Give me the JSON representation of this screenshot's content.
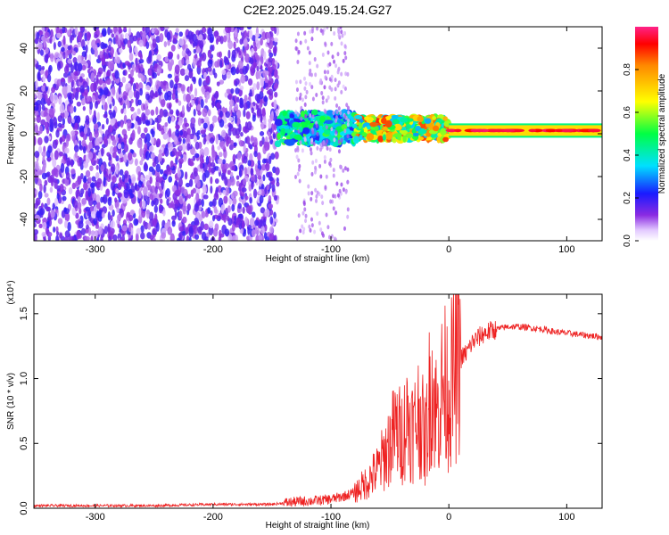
{
  "title": "C2E2.2025.049.15.24.G27",
  "colors": {
    "snr_line": "#ee2222",
    "frame": "#000000"
  },
  "chart_data": [
    {
      "type": "heatmap",
      "title": "",
      "xlabel": "Height of straight line (km)",
      "ylabel": "Frequency (Hz)",
      "xlim": [
        -352,
        130
      ],
      "ylim": [
        -50,
        50
      ],
      "x_ticks": [
        -300,
        -200,
        -100,
        0,
        100
      ],
      "y_ticks": [
        -40,
        -20,
        0,
        20,
        40
      ],
      "colorbar": {
        "label": "Normalized spectral amplitude",
        "range": [
          0,
          1
        ],
        "ticks": [
          "0.0",
          "0.2",
          "0.4",
          "0.6",
          "0.8"
        ],
        "tick_values": [
          0.0,
          0.2,
          0.4,
          0.6,
          0.8
        ],
        "colormap": "rainbow (white-violet-blue-cyan-green-yellow-red-magenta)"
      },
      "regions": [
        {
          "x": [
            -352,
            -145
          ],
          "freq": [
            -50,
            50
          ],
          "amplitude": [
            0.05,
            0.2
          ],
          "description": "broadband low-amplitude noise"
        },
        {
          "x": [
            -145,
            -80
          ],
          "freq": [
            -5,
            10
          ],
          "amplitude": [
            0.2,
            0.55
          ],
          "description": "signal emerging"
        },
        {
          "x": [
            -80,
            0
          ],
          "freq": [
            -3,
            8
          ],
          "amplitude": [
            0.3,
            0.9
          ],
          "description": "strong scintillating signal"
        },
        {
          "x": [
            0,
            130
          ],
          "freq": [
            0,
            3
          ],
          "amplitude": [
            0.6,
            1.0
          ],
          "description": "narrow carrier tone"
        }
      ]
    },
    {
      "type": "line",
      "title": "",
      "xlabel": "Height of straight line (km)",
      "ylabel": "SNR (10 * v/v)",
      "y_multiplier": "(x10⁴)",
      "xlim": [
        -352,
        130
      ],
      "ylim": [
        0,
        1.65
      ],
      "x_ticks": [
        -300,
        -200,
        -100,
        0,
        100
      ],
      "y_ticks": [
        "0.0",
        "0.5",
        "1.0",
        "1.5"
      ],
      "y_tick_values": [
        0.0,
        0.5,
        1.0,
        1.5
      ],
      "series": [
        {
          "x": [
            -352,
            -300,
            -250,
            -200,
            -150,
            -130,
            -110,
            -100,
            -90,
            -80,
            -70,
            -60,
            -50,
            -45,
            -40,
            -35,
            -30,
            -25,
            -20,
            -15,
            -10,
            -5,
            0,
            5,
            10,
            15,
            20,
            30,
            40,
            50,
            60,
            70,
            80,
            90,
            100,
            110,
            120,
            130
          ],
          "y": [
            0.02,
            0.02,
            0.02,
            0.03,
            0.03,
            0.05,
            0.06,
            0.07,
            0.09,
            0.12,
            0.2,
            0.3,
            0.5,
            0.6,
            0.55,
            0.7,
            0.6,
            0.75,
            0.5,
            1.0,
            0.7,
            0.95,
            0.9,
            1.05,
            1.15,
            1.2,
            1.28,
            1.35,
            1.38,
            1.4,
            1.4,
            1.39,
            1.38,
            1.36,
            1.35,
            1.34,
            1.33,
            1.32
          ]
        }
      ]
    }
  ]
}
